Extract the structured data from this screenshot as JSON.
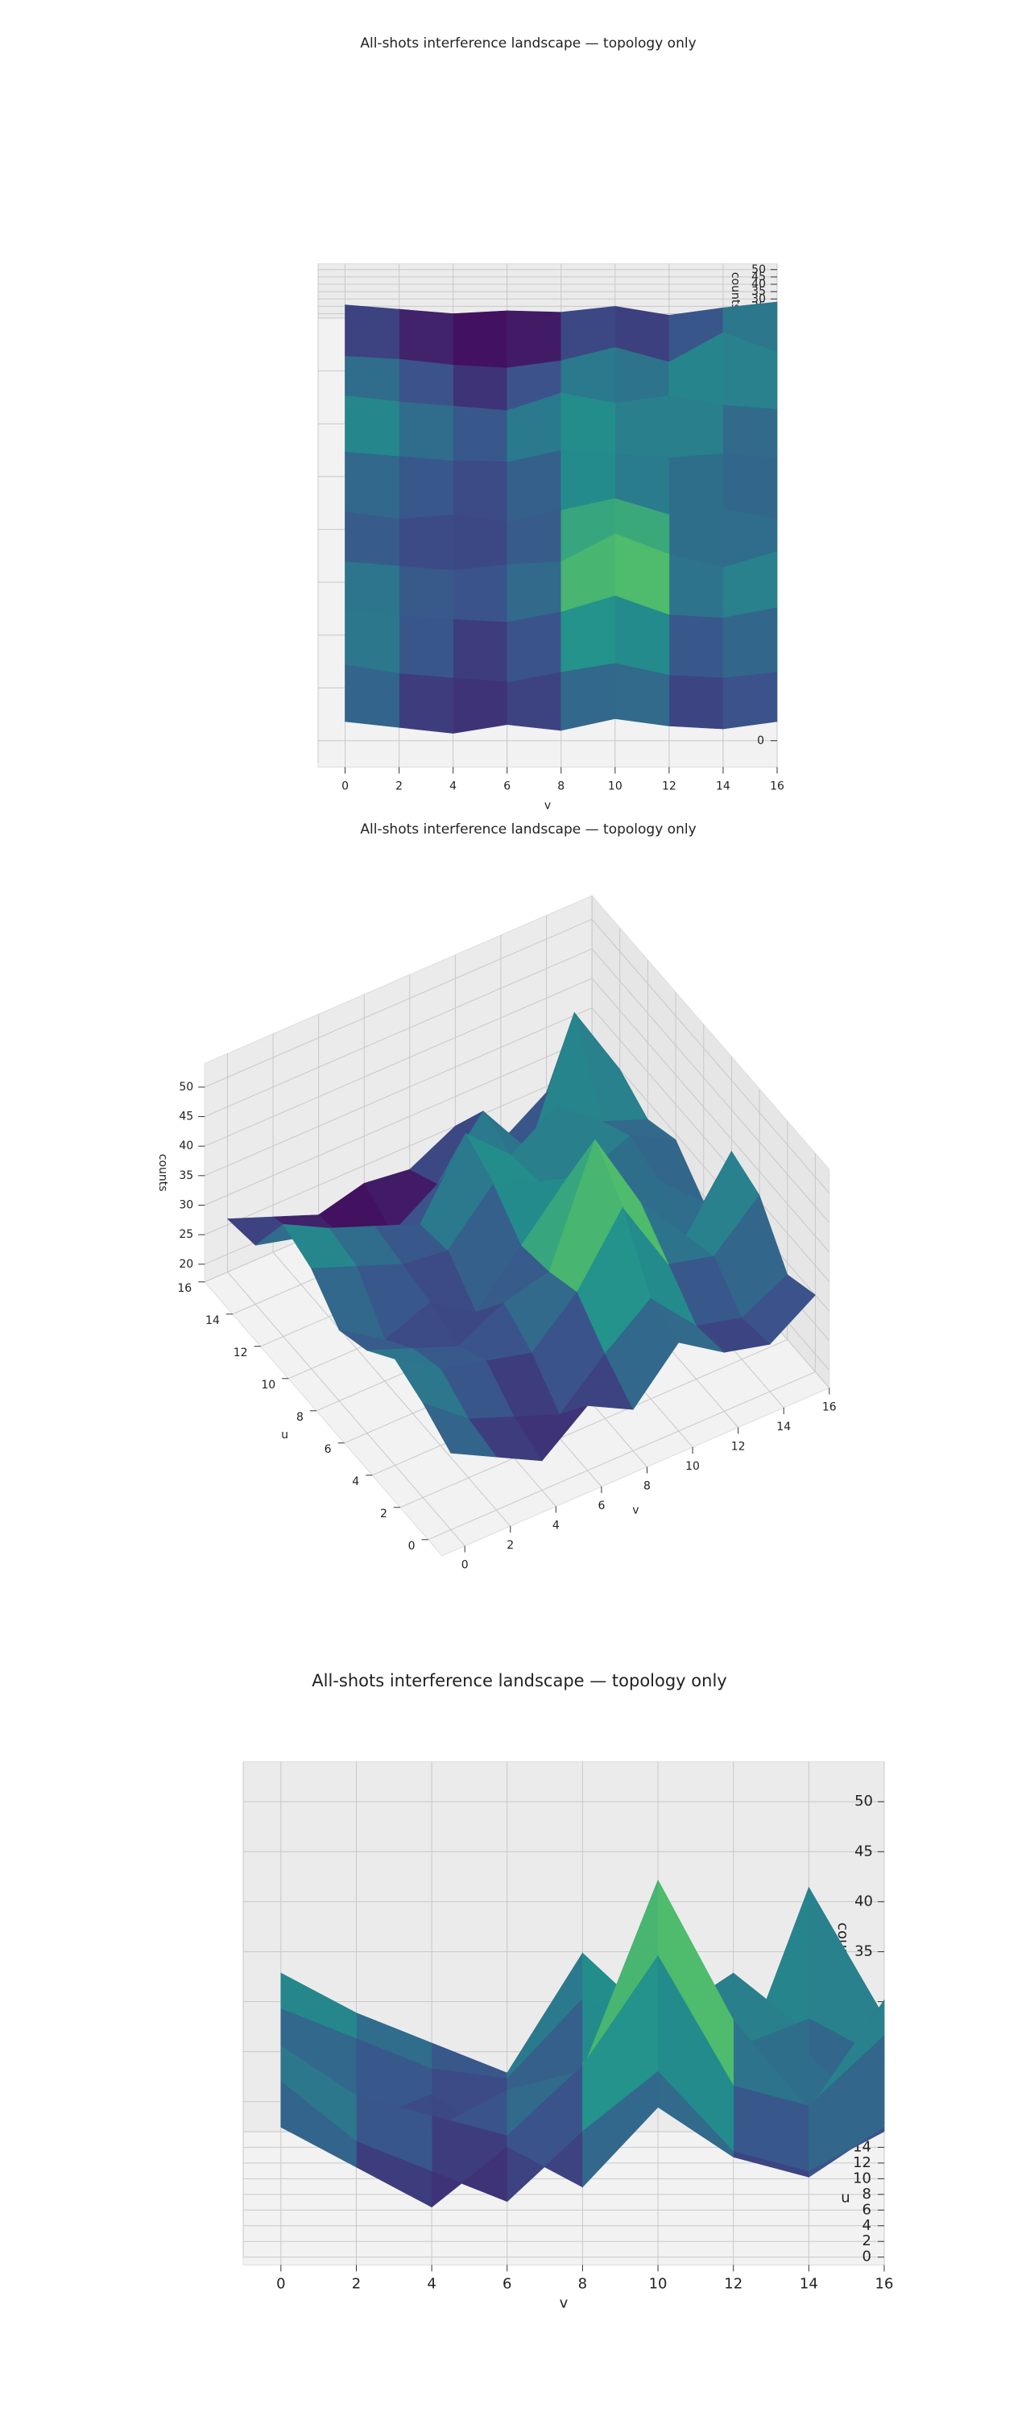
{
  "chart_data": [
    {
      "type": "surface",
      "title": "All-shots interference landscape — topology only",
      "x_label": "v",
      "y_label": "u",
      "z_label": "counts",
      "colormap": "viridis",
      "x": [
        0,
        2,
        4,
        6,
        8,
        10,
        12,
        14,
        16
      ],
      "y": [
        0,
        2,
        4,
        6,
        8,
        10,
        12,
        14,
        16
      ],
      "z": [
        [
          30,
          26,
          22,
          28,
          24,
          32,
          27,
          25,
          30
        ],
        [
          33,
          27,
          24,
          21,
          28,
          34,
          26,
          24,
          28
        ],
        [
          35,
          30,
          28,
          26,
          33,
          44,
          31,
          29,
          36
        ],
        [
          31,
          28,
          25,
          29,
          31,
          50,
          36,
          27,
          38
        ],
        [
          29,
          24,
          27,
          22,
          30,
          38,
          27,
          31,
          24
        ],
        [
          34,
          31,
          28,
          27,
          35,
          32,
          30,
          33,
          29
        ],
        [
          36,
          32,
          29,
          26,
          38,
          31,
          36,
          30,
          27
        ],
        [
          27,
          25,
          21,
          19,
          24,
          33,
          23,
          43,
          30
        ],
        [
          26,
          23,
          20,
          22,
          21,
          25,
          19,
          24,
          28
        ]
      ],
      "xlim": [
        -1,
        16
      ],
      "ylim": [
        -1,
        16
      ],
      "zlim": [
        17,
        54
      ],
      "xticks": [
        0,
        2,
        4,
        6,
        8,
        10,
        12,
        14,
        16
      ],
      "yticks": [
        0,
        2,
        4,
        6,
        8,
        10,
        12,
        14,
        16
      ],
      "zticks": [
        20,
        25,
        30,
        35,
        40,
        45,
        50
      ]
    },
    {
      "type": "surface",
      "title": "All-shots interference landscape — topology only",
      "x_label": "v",
      "y_label": "u",
      "z_label": "counts",
      "colormap": "viridis",
      "x": [
        0,
        2,
        4,
        6,
        8,
        10,
        12,
        14,
        16
      ],
      "y": [
        0,
        2,
        4,
        6,
        8,
        10,
        12,
        14,
        16
      ],
      "z": [
        [
          30,
          26,
          22,
          28,
          24,
          32,
          27,
          25,
          30
        ],
        [
          33,
          27,
          24,
          21,
          28,
          34,
          26,
          24,
          28
        ],
        [
          35,
          30,
          28,
          26,
          33,
          44,
          31,
          29,
          36
        ],
        [
          31,
          28,
          25,
          29,
          31,
          50,
          36,
          27,
          38
        ],
        [
          29,
          24,
          27,
          22,
          30,
          38,
          27,
          31,
          24
        ],
        [
          34,
          31,
          28,
          27,
          35,
          32,
          30,
          33,
          29
        ],
        [
          36,
          32,
          29,
          26,
          38,
          31,
          36,
          30,
          27
        ],
        [
          27,
          25,
          21,
          19,
          24,
          33,
          23,
          43,
          30
        ],
        [
          26,
          23,
          20,
          22,
          21,
          25,
          19,
          24,
          28
        ]
      ],
      "xlim": [
        -1,
        16
      ],
      "ylim": [
        -1,
        16
      ],
      "zlim": [
        17,
        54
      ],
      "xticks": [
        0,
        2,
        4,
        6,
        8,
        10,
        12,
        14,
        16
      ],
      "yticks": [
        0,
        2,
        4,
        6,
        8,
        10,
        12,
        14,
        16
      ],
      "zticks": [
        20,
        25,
        30,
        35,
        40,
        45,
        50
      ]
    },
    {
      "type": "surface",
      "title": "All-shots interference landscape — topology only",
      "x_label": "v",
      "y_label": "u",
      "z_label": "counts",
      "colormap": "viridis",
      "x": [
        0,
        2,
        4,
        6,
        8,
        10,
        12,
        14,
        16
      ],
      "y": [
        0,
        2,
        4,
        6,
        8,
        10,
        12,
        14,
        16
      ],
      "z": [
        [
          30,
          26,
          22,
          28,
          24,
          32,
          27,
          25,
          30
        ],
        [
          33,
          27,
          24,
          21,
          28,
          34,
          26,
          24,
          28
        ],
        [
          35,
          30,
          28,
          26,
          33,
          44,
          31,
          29,
          36
        ],
        [
          31,
          28,
          25,
          29,
          31,
          50,
          36,
          27,
          38
        ],
        [
          29,
          24,
          27,
          22,
          30,
          38,
          27,
          31,
          24
        ],
        [
          34,
          31,
          28,
          27,
          35,
          32,
          30,
          33,
          29
        ],
        [
          36,
          32,
          29,
          26,
          38,
          31,
          36,
          30,
          27
        ],
        [
          27,
          25,
          21,
          19,
          24,
          33,
          23,
          43,
          30
        ],
        [
          26,
          23,
          20,
          22,
          21,
          25,
          19,
          24,
          28
        ]
      ],
      "xlim": [
        -1,
        16
      ],
      "ylim": [
        -1,
        16
      ],
      "zlim": [
        17,
        54
      ],
      "xticks": [
        0,
        2,
        4,
        6,
        8,
        10,
        12,
        14,
        16
      ],
      "yticks": [
        0,
        2,
        4,
        6,
        8,
        10,
        12,
        14,
        16
      ],
      "zticks": [
        20,
        25,
        30,
        35,
        40,
        45,
        50
      ]
    }
  ]
}
